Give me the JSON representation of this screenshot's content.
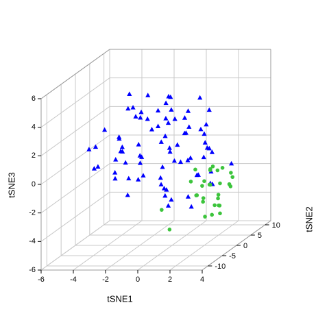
{
  "chart_data": {
    "type": "scatter3d",
    "xlabel": "tSNE1",
    "ylabel": "tSNE2",
    "zlabel": "tSNE3",
    "xlim": [
      -6,
      4
    ],
    "ylim": [
      -12,
      12
    ],
    "zlim": [
      -6,
      6
    ],
    "xticks": [
      -6,
      -4,
      -2,
      0,
      2,
      4
    ],
    "yticks": [
      -10,
      -5,
      0,
      5,
      10
    ],
    "zticks": [
      -6,
      -4,
      -2,
      0,
      2,
      4,
      6
    ],
    "grid": true,
    "series": [
      {
        "color": "#0000ff",
        "marker": "triangle",
        "x": [
          -3.0,
          -2.2,
          -1.5,
          -0.8,
          -0.2,
          0.5,
          1.2,
          -2.6,
          -1.9,
          -1.1,
          -0.4,
          0.3,
          1.0,
          1.6,
          2.3,
          -3.3,
          -2.5,
          -1.7,
          -0.9,
          -0.1,
          0.7,
          1.4,
          2.0,
          -4.0,
          -3.1,
          -2.3,
          -1.4,
          -0.6,
          0.2,
          0.9,
          1.7,
          2.5,
          -4.6,
          -3.8,
          -2.9,
          -2.0,
          -1.2,
          -0.3,
          0.5,
          1.3,
          -5.1,
          -4.3,
          -3.5,
          -2.7,
          -1.8,
          -0.9,
          0.0,
          0.8,
          1.9,
          2.8,
          -3.9,
          -3.0,
          -2.1,
          -1.3,
          -0.5,
          0.4,
          1.1,
          2.2,
          -2.4,
          -1.6,
          -0.7,
          0.1,
          1.0,
          1.8,
          -1.9,
          -1.0,
          -0.2,
          0.6,
          1.5,
          -2.8,
          -0.4,
          0.3,
          1.2,
          -3.4,
          2.6,
          3.2,
          -1.4,
          0.0,
          -4.8,
          1.6
        ],
        "y": [
          2,
          -3,
          0,
          4,
          -1,
          -5,
          3,
          1,
          -2,
          5,
          2,
          -3,
          0,
          4,
          -1,
          -5,
          3,
          1,
          -2,
          5,
          2,
          -3,
          0,
          4,
          -1,
          -5,
          3,
          1,
          -2,
          5,
          2,
          -3,
          0,
          4,
          -1,
          -5,
          3,
          1,
          -2,
          5,
          2,
          -3,
          0,
          4,
          -1,
          -5,
          3,
          1,
          -2,
          5,
          2,
          -3,
          0,
          4,
          -1,
          -5,
          3,
          1,
          -2,
          5,
          2,
          -3,
          0,
          4,
          -1,
          -5,
          3,
          1,
          -2,
          5,
          2,
          -3,
          0,
          4,
          -1,
          -5,
          3,
          1,
          -2,
          5
        ],
        "z": [
          4.3,
          4.0,
          4.5,
          3.8,
          4.1,
          3.6,
          3.9,
          3.5,
          3.3,
          3.7,
          3.2,
          3.0,
          3.4,
          2.9,
          2.6,
          2.8,
          2.5,
          2.7,
          2.4,
          2.2,
          2.0,
          2.3,
          1.8,
          1.0,
          1.6,
          1.3,
          1.9,
          1.5,
          1.1,
          1.4,
          0.9,
          0.6,
          -0.5,
          0.3,
          0.7,
          0.5,
          0.8,
          0.4,
          0.2,
          0.1,
          0.6,
          -0.2,
          0.0,
          -0.3,
          -0.1,
          -0.4,
          -0.6,
          -0.2,
          -0.8,
          -1.0,
          -1.2,
          -0.9,
          -1.4,
          -1.1,
          -1.6,
          -1.3,
          -1.5,
          -1.8,
          -2.2,
          -2.0,
          -2.4,
          -2.1,
          -2.6,
          -2.3,
          1.2,
          0.9,
          0.6,
          1.7,
          0.4,
          2.6,
          -3.1,
          -2.8,
          -3.3,
          -1.9,
          -0.7,
          1.5,
          3.0,
          2.7,
          1.0,
          -0.2
        ]
      },
      {
        "color": "#3cc43c",
        "marker": "circle",
        "x": [
          1.8,
          2.2,
          2.6,
          3.0,
          3.3,
          2.0,
          2.4,
          2.8,
          3.2,
          1.9,
          2.3,
          2.7,
          3.1,
          2.1,
          2.5,
          2.9,
          1.7,
          2.2,
          2.6,
          3.0,
          2.4,
          2.8,
          2.0,
          2.5,
          3.4,
          1.5,
          2.9,
          2.3,
          -1.0,
          0.2
        ],
        "y": [
          -2,
          1,
          3,
          -1,
          2,
          0,
          -3,
          1,
          2,
          -2,
          -2,
          1,
          3,
          -1,
          2,
          0,
          -3,
          1,
          2,
          -2,
          -2,
          1,
          3,
          -1,
          2,
          0,
          -3,
          1,
          2,
          -2
        ],
        "z": [
          -0.4,
          -0.8,
          -1.0,
          -0.6,
          -1.2,
          -1.5,
          -1.4,
          -1.8,
          -2.0,
          -2.2,
          -2.4,
          -2.6,
          -2.3,
          -2.8,
          -3.0,
          -3.2,
          -1.1,
          -1.9,
          -3.5,
          -2.9,
          -3.7,
          -3.9,
          -0.9,
          -1.6,
          -1.5,
          -2.5,
          -0.3,
          -4.0,
          -3.8,
          -4.6
        ]
      }
    ]
  }
}
